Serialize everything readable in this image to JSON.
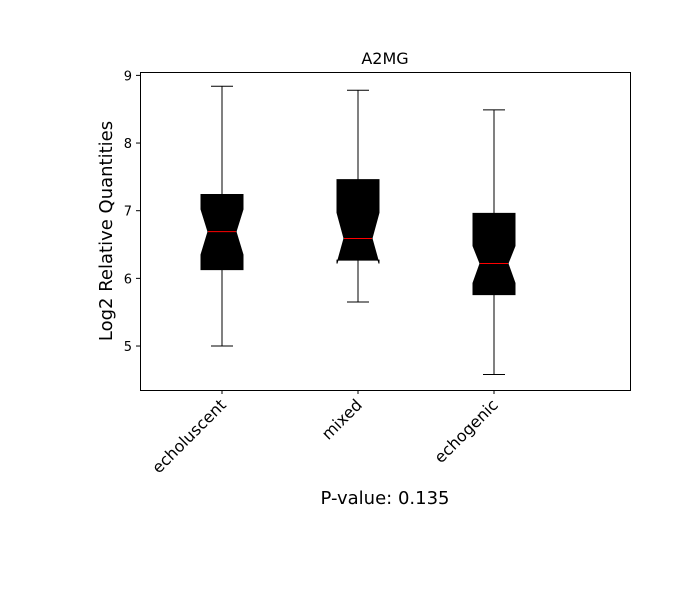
{
  "chart_data": {
    "type": "box",
    "title": "A2MG",
    "ylabel": "Log2 Relative Quantities",
    "xlabel": "P-value: 0.135",
    "ylim": [
      4.35,
      9.05
    ],
    "yticks": [
      5,
      6,
      7,
      8,
      9
    ],
    "notched": true,
    "grid": false,
    "colors": {
      "box": "#000000",
      "median": "#ff0000",
      "whisker": "#000000"
    },
    "categories": [
      "echoluscent",
      "mixed",
      "echogenic"
    ],
    "boxes": [
      {
        "category": "echoluscent",
        "whisker_low": 5.0,
        "q1": 6.13,
        "median": 6.69,
        "q3": 7.24,
        "whisker_high": 8.84,
        "notch_low": 6.35,
        "notch_high": 7.02
      },
      {
        "category": "mixed",
        "whisker_low": 5.65,
        "q1": 6.27,
        "median": 6.59,
        "q3": 7.46,
        "whisker_high": 8.78,
        "notch_low": 6.22,
        "notch_high": 6.97
      },
      {
        "category": "echogenic",
        "whisker_low": 4.58,
        "q1": 5.76,
        "median": 6.22,
        "q3": 6.96,
        "whisker_high": 8.49,
        "notch_low": 5.93,
        "notch_high": 6.48
      }
    ]
  }
}
